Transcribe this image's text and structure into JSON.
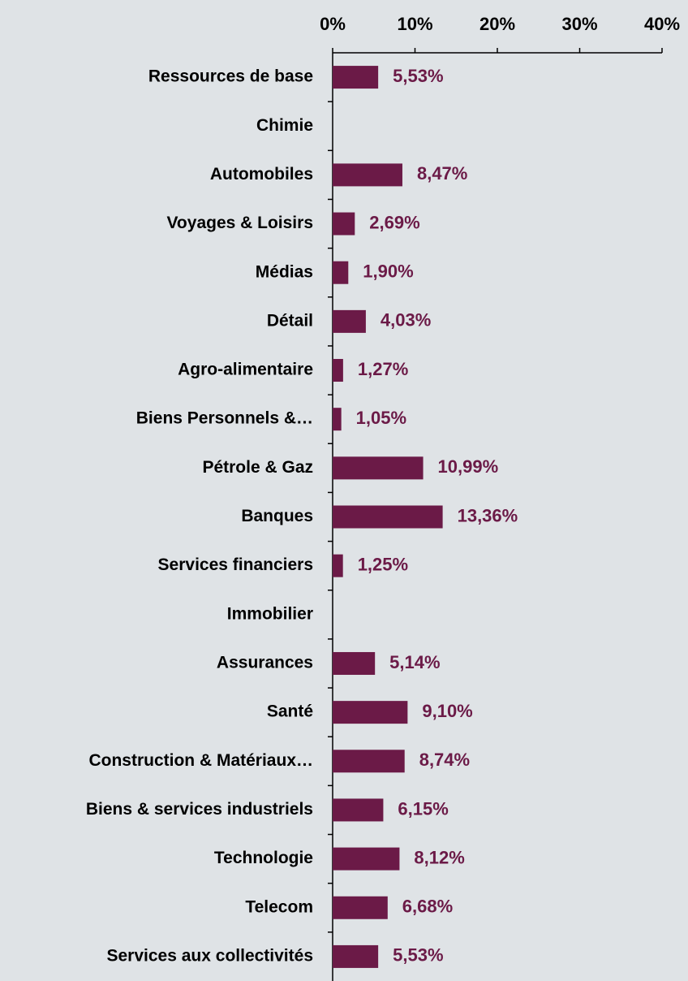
{
  "chart_data": {
    "type": "barh",
    "categories": [
      "Ressources de base",
      "Chimie",
      "Automobiles",
      "Voyages & Loisirs",
      "Médias",
      "Détail",
      "Agro-alimentaire",
      "Biens Personnels &…",
      "Pétrole & Gaz",
      "Banques",
      "Services financiers",
      "Immobilier",
      "Assurances",
      "Santé",
      "Construction & Matériaux…",
      "Biens & services industriels",
      "Technologie",
      "Telecom",
      "Services aux collectivités"
    ],
    "values": [
      5.53,
      null,
      8.47,
      2.69,
      1.9,
      4.03,
      1.27,
      1.05,
      10.99,
      13.36,
      1.25,
      null,
      5.14,
      9.1,
      8.74,
      6.15,
      8.12,
      6.68,
      5.53
    ],
    "value_labels": [
      "5,53%",
      null,
      "8,47%",
      "2,69%",
      "1,90%",
      "4,03%",
      "1,27%",
      "1,05%",
      "10,99%",
      "13,36%",
      "1,25%",
      null,
      "5,14%",
      "9,10%",
      "8,74%",
      "6,15%",
      "8,12%",
      "6,68%",
      "5,53%"
    ],
    "color": "#6b1a47",
    "xlim": [
      0,
      40
    ],
    "xticks": [
      {
        "value": 0,
        "label": "0%"
      },
      {
        "value": 10,
        "label": "10%"
      },
      {
        "value": 20,
        "label": "20%"
      },
      {
        "value": 30,
        "label": "30%"
      },
      {
        "value": 40,
        "label": "40%"
      }
    ]
  }
}
